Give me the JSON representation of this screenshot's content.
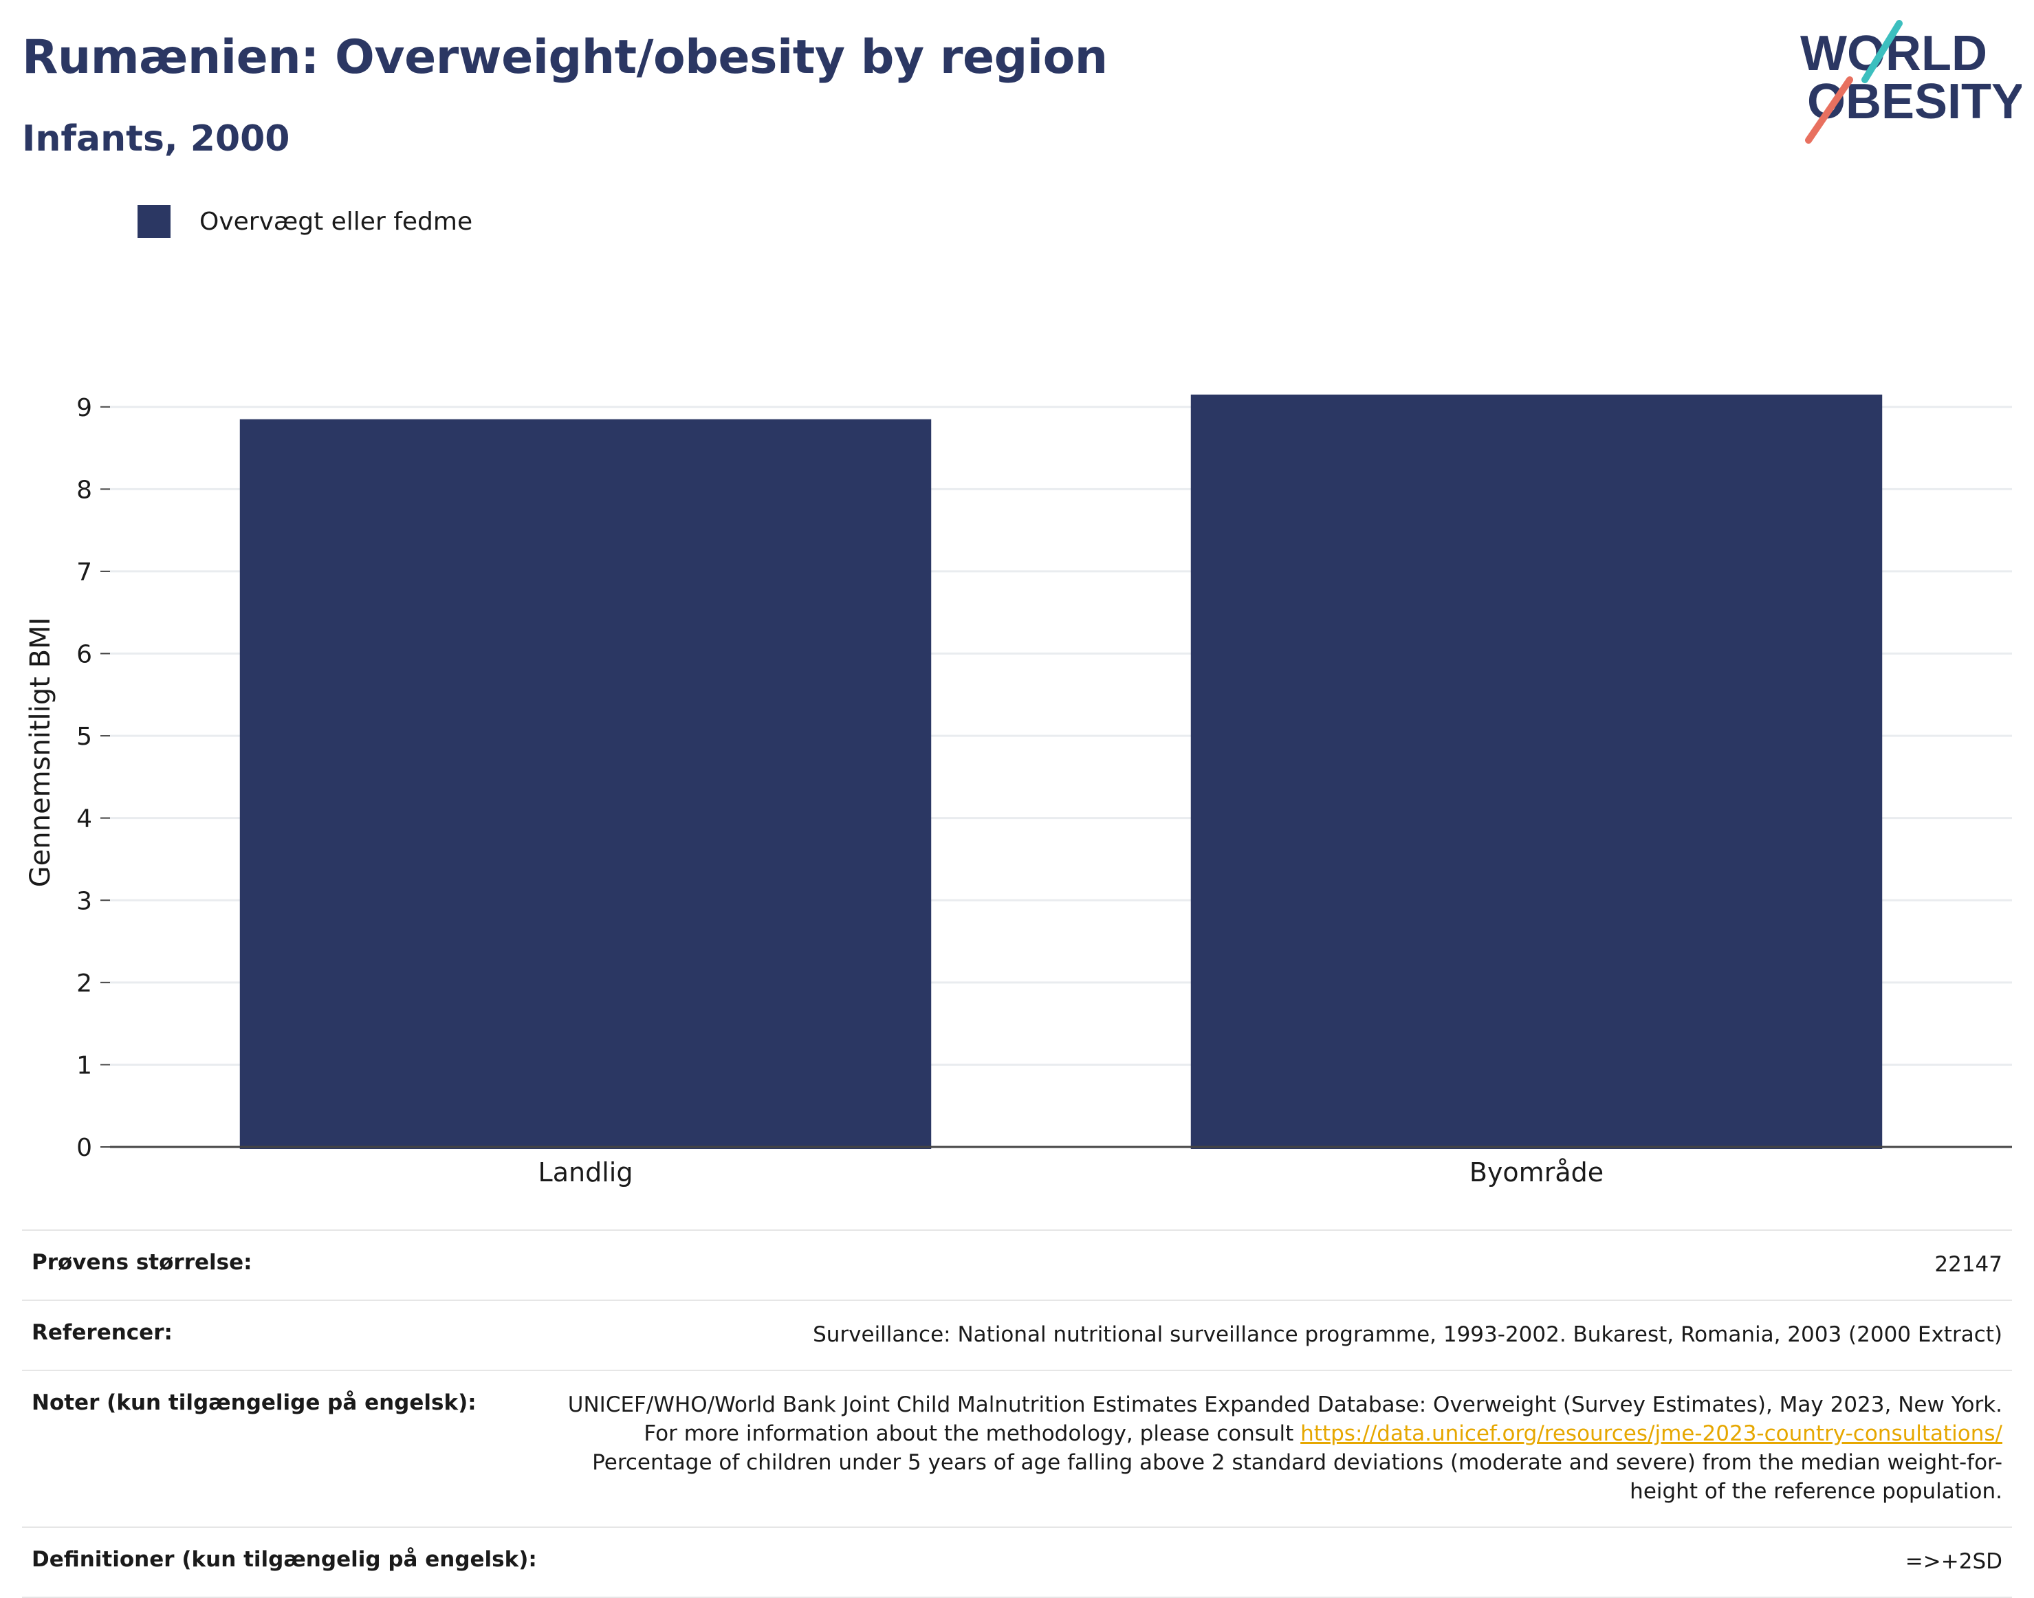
{
  "header": {
    "title": "Rumænien: Overweight/obesity by region",
    "subtitle": "Infants, 2000"
  },
  "logo": {
    "line1": "WORLD",
    "line2": "OBESITY"
  },
  "colors": {
    "bar": "#2b3763",
    "title": "#2b3763",
    "link": "#e6a700",
    "logo_teal": "#3cbfbf",
    "logo_coral": "#e8705f"
  },
  "chart_data": {
    "type": "bar",
    "categories": [
      "Landlig",
      "Byområde"
    ],
    "series": [
      {
        "name": "Overvægt eller fedme",
        "values": [
          8.85,
          9.15
        ]
      }
    ],
    "ylabel": "Gennemsnitligt BMI",
    "xlabel": "",
    "ylim": [
      0,
      9.6
    ],
    "yticks": [
      0,
      1,
      2,
      3,
      4,
      5,
      6,
      7,
      8,
      9
    ],
    "grid": true,
    "legend": "top-left"
  },
  "meta": {
    "sample_size_label": "Prøvens størrelse:",
    "sample_size_value": "22147",
    "references_label": "Referencer:",
    "references_value": "Surveillance: National nutritional surveillance programme, 1993-2002. Bukarest, Romania, 2003 (2000 Extract)",
    "notes_label": "Noter (kun tilgængelige på engelsk):",
    "notes_text_1": "UNICEF/WHO/World Bank Joint Child Malnutrition Estimates Expanded Database: Overweight (Survey Estimates), May 2023, New York. For more information about the methodology, please consult ",
    "notes_link": "https://data.unicef.org/resources/jme-2023-country-consultations/",
    "notes_text_2": "Percentage of children under 5 years of age falling above 2 standard deviations (moderate and severe) from the median weight-for-height of the reference population.",
    "definitions_label": "Definitioner (kun tilgængelig på engelsk):",
    "definitions_value": "=>+2SD"
  }
}
